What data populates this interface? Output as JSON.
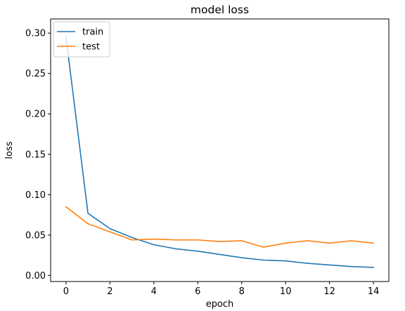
{
  "chart_data": {
    "type": "line",
    "title": "model loss",
    "xlabel": "epoch",
    "ylabel": "loss",
    "xlim": [
      -0.7,
      14.7
    ],
    "ylim": [
      -0.0075,
      0.3175
    ],
    "x_ticks": [
      0,
      2,
      4,
      6,
      8,
      10,
      12,
      14
    ],
    "x_tick_labels": [
      "0",
      "2",
      "4",
      "6",
      "8",
      "10",
      "12",
      "14"
    ],
    "y_ticks": [
      0.0,
      0.05,
      0.1,
      0.15,
      0.2,
      0.25,
      0.3
    ],
    "y_tick_labels": [
      "0.00",
      "0.05",
      "0.10",
      "0.15",
      "0.20",
      "0.25",
      "0.30"
    ],
    "grid": false,
    "legend_position": "top-left",
    "x": [
      0,
      1,
      2,
      3,
      4,
      5,
      6,
      7,
      8,
      9,
      10,
      11,
      12,
      13,
      14
    ],
    "series": [
      {
        "name": "train",
        "color": "#1f77b4",
        "values": [
          0.295,
          0.077,
          0.058,
          0.047,
          0.038,
          0.033,
          0.03,
          0.026,
          0.022,
          0.019,
          0.018,
          0.015,
          0.013,
          0.011,
          0.01
        ]
      },
      {
        "name": "test",
        "color": "#ff7f0e",
        "values": [
          0.085,
          0.064,
          0.054,
          0.044,
          0.045,
          0.044,
          0.044,
          0.042,
          0.043,
          0.035,
          0.04,
          0.043,
          0.04,
          0.043,
          0.04
        ]
      }
    ]
  }
}
